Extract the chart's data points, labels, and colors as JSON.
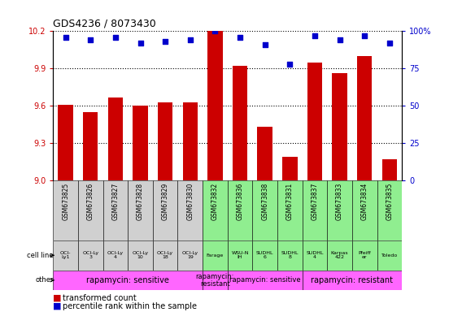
{
  "title": "GDS4236 / 8073430",
  "samples": [
    "GSM673825",
    "GSM673826",
    "GSM673827",
    "GSM673828",
    "GSM673829",
    "GSM673830",
    "GSM673832",
    "GSM673836",
    "GSM673838",
    "GSM673831",
    "GSM673837",
    "GSM673833",
    "GSM673834",
    "GSM673835"
  ],
  "bar_values": [
    9.61,
    9.55,
    9.67,
    9.6,
    9.63,
    9.63,
    10.2,
    9.92,
    9.43,
    9.19,
    9.95,
    9.86,
    10.0,
    9.17
  ],
  "dot_values": [
    96,
    94,
    96,
    92,
    93,
    94,
    100,
    96,
    91,
    78,
    97,
    94,
    97,
    92
  ],
  "ylim_left": [
    9.0,
    10.2
  ],
  "ylim_right": [
    0,
    100
  ],
  "yticks_left": [
    9.0,
    9.3,
    9.6,
    9.9,
    10.2
  ],
  "yticks_right": [
    0,
    25,
    50,
    75,
    100
  ],
  "ytick_right_labels": [
    "0",
    "25",
    "50",
    "75",
    "100%"
  ],
  "bar_color": "#cc0000",
  "dot_color": "#0000cc",
  "bar_width": 0.6,
  "cell_lines": [
    "OCI-\nLy1",
    "OCI-Ly\n3",
    "OCI-Ly\n4",
    "OCI-Ly\n10",
    "OCI-Ly\n18",
    "OCI-Ly\n19",
    "Farage",
    "WSU-N\nIH",
    "SUDHL\n6",
    "SUDHL\n8",
    "SUDHL\n4",
    "Karpas\n422",
    "Pfeiff\ner",
    "Toledo"
  ],
  "cell_line_colors": [
    "#d0d0d0",
    "#d0d0d0",
    "#d0d0d0",
    "#d0d0d0",
    "#d0d0d0",
    "#d0d0d0",
    "#90ee90",
    "#90ee90",
    "#90ee90",
    "#90ee90",
    "#90ee90",
    "#90ee90",
    "#90ee90",
    "#90ee90"
  ],
  "other_groups": [
    {
      "label": "rapamycin: sensitive",
      "start": 0,
      "end": 5,
      "color": "#ff66ff",
      "fontsize": 7
    },
    {
      "label": "rapamycin:\nresistant",
      "start": 6,
      "end": 6,
      "color": "#ff66ff",
      "fontsize": 6
    },
    {
      "label": "rapamycin: sensitive",
      "start": 7,
      "end": 9,
      "color": "#ff66ff",
      "fontsize": 6
    },
    {
      "label": "rapamycin: resistant",
      "start": 10,
      "end": 13,
      "color": "#ff66ff",
      "fontsize": 7
    }
  ],
  "legend_bar_label": "transformed count",
  "legend_dot_label": "percentile rank within the sample",
  "bar_label_color": "#cc0000",
  "dot_label_color": "#0000cc",
  "ylabel_right_color": "#0000cc",
  "left_tick_color": "#cc0000"
}
